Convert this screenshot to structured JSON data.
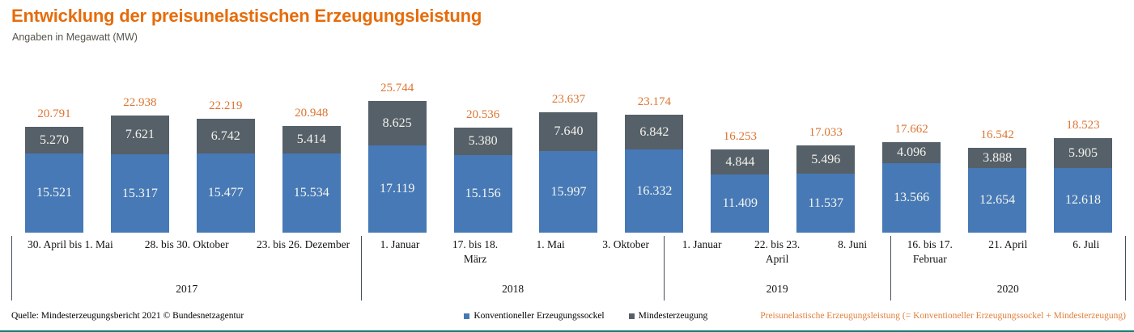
{
  "header": {
    "title": "Entwicklung der preisunelastischen Erzeugungsleistung",
    "subtitle": "Angaben in Megawatt (MW)"
  },
  "footer": {
    "source": "Quelle: Mindesterzeugungsbericht 2021 © Bundesnetzagentur",
    "legend": [
      {
        "label": "Konventioneller Erzeugungssockel",
        "color": "#4679b6"
      },
      {
        "label": "Mindesterzeugung",
        "color": "#566069"
      }
    ],
    "formula_note": "Preisunelastische Erzeugungsleistung (= Konventioneller Erzeugungssockel + Mindesterzeugung)"
  },
  "colors": {
    "title_orange": "#e66c0b",
    "total_label_orange": "#dd7430",
    "bar_blue": "#4679b6",
    "bar_gray": "#566069",
    "separator_gray": "#44505c",
    "bottom_rule_teal": "#0f7d72"
  },
  "chart_data": {
    "type": "bar",
    "stacked": true,
    "title": "Entwicklung der preisunelastischen Erzeugungsleistung",
    "unit": "MW",
    "ylabel": "Angaben in Megawatt (MW)",
    "legend_position": "bottom",
    "grid": false,
    "max_value_mw": 25744,
    "series_names": [
      "Konventioneller Erzeugungssockel",
      "Mindesterzeugung"
    ],
    "total_series_name": "Preisunelastische Erzeugungsleistung",
    "groups": [
      {
        "year": "2017",
        "bars": [
          {
            "label": "30. April bis 1. Mai",
            "sockel": "15.521",
            "mindesterzeugung": "5.270",
            "total": "20.791"
          },
          {
            "label": "28. bis 30. Oktober",
            "sockel": "15.317",
            "mindesterzeugung": "7.621",
            "total": "22.938"
          },
          {
            "label": "23. bis 26. Dezember",
            "sockel": "15.477",
            "mindesterzeugung": "6.742",
            "total": "22.219"
          }
        ]
      },
      {
        "year": "2018",
        "bars": [
          {
            "label": "1. Januar",
            "sockel": "15.534",
            "mindesterzeugung": "5.414",
            "total": "20.948"
          },
          {
            "label": "17. bis 18. März",
            "sockel": "17.119",
            "mindesterzeugung": "8.625",
            "total": "25.744"
          },
          {
            "label": "1. Mai",
            "sockel": "15.156",
            "mindesterzeugung": "5.380",
            "total": "20.536"
          },
          {
            "label": "3. Oktober",
            "sockel": "15.997",
            "mindesterzeugung": "7.640",
            "total": "23.637"
          }
        ]
      },
      {
        "year": "2019",
        "bars": [
          {
            "label": "1. Januar",
            "sockel": "16.332",
            "mindesterzeugung": "6.842",
            "total": "23.174"
          },
          {
            "label": "22. bis 23. April",
            "sockel": "11.409",
            "mindesterzeugung": "4.844",
            "total": "16.253"
          },
          {
            "label": "8. Juni",
            "sockel": "11.537",
            "mindesterzeugung": "5.496",
            "total": "17.033"
          }
        ]
      },
      {
        "year": "2020",
        "bars": [
          {
            "label": "16. bis 17. Februar",
            "sockel": "13.566",
            "mindesterzeugung": "4.096",
            "total": "17.662"
          },
          {
            "label": "21. April",
            "sockel": "12.654",
            "mindesterzeugung": "3.888",
            "total": "16.542"
          },
          {
            "label": "6. Juli",
            "sockel": "12.618",
            "mindesterzeugung": "5.905",
            "total": "18.523"
          }
        ]
      }
    ]
  }
}
